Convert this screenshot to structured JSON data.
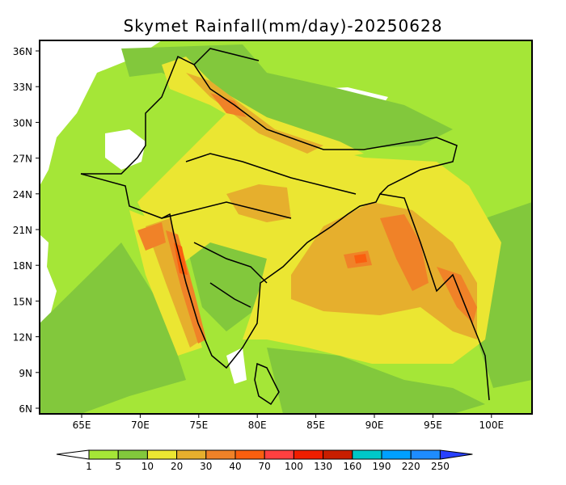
{
  "title": "Skymet Rainfall(mm/day)-20250628",
  "lat_labels": [
    "36N",
    "33N",
    "30N",
    "27N",
    "24N",
    "21N",
    "18N",
    "15N",
    "12N",
    "9N",
    "6N"
  ],
  "lon_labels": [
    "65E",
    "70E",
    "75E",
    "80E",
    "85E",
    "90E",
    "95E",
    "100E"
  ],
  "colorbar": {
    "labels": [
      "1",
      "5",
      "10",
      "20",
      "30",
      "40",
      "70",
      "100",
      "130",
      "160",
      "190",
      "220",
      "250"
    ],
    "colors": [
      "#a5e637",
      "#82c83c",
      "#ebe632",
      "#e6af2d",
      "#f08228",
      "#fa5f0f",
      "#ff4040",
      "#f01e00",
      "#c81e00",
      "#00c8c8",
      "#00a0ff",
      "#1e8cff",
      "#2840ff"
    ]
  }
}
